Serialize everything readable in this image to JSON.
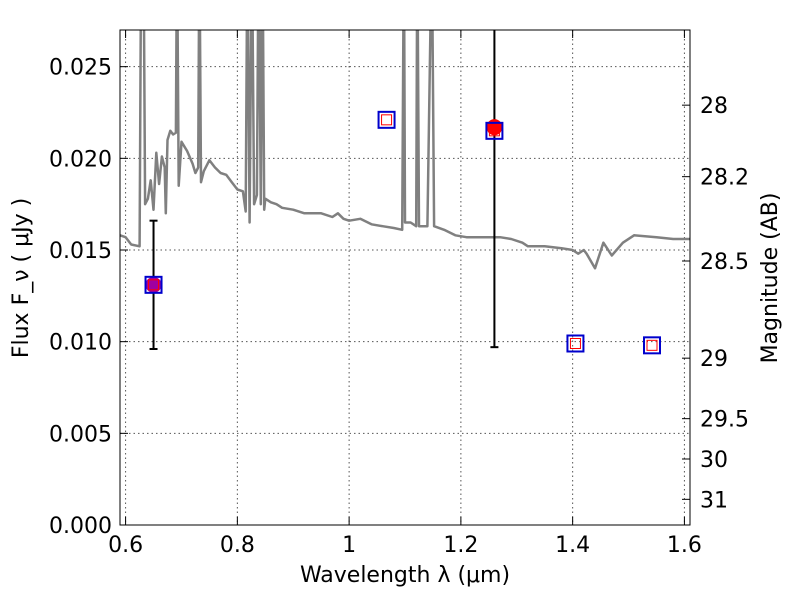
{
  "chart_data": {
    "type": "scatter",
    "title": "",
    "xlabel": "Wavelength  λ (μm)",
    "ylabel": "Flux  F_ν  ( μJy )",
    "ylabel_right": "Magnitude (AB)",
    "xlim": [
      0.59,
      1.61
    ],
    "ylim": [
      0.0,
      0.027
    ],
    "grid": true,
    "x_ticks": [
      0.6,
      0.8,
      1.0,
      1.2,
      1.4,
      1.6
    ],
    "x_tick_labels": [
      "0.6",
      "0.8",
      "1",
      "1.2",
      "1.4",
      "1.6"
    ],
    "y_ticks": [
      0.0,
      0.005,
      0.01,
      0.015,
      0.02,
      0.025
    ],
    "y_tick_labels": [
      "0.000",
      "0.005",
      "0.010",
      "0.015",
      "0.020",
      "0.025"
    ],
    "right_ticks": [
      {
        "label": "28",
        "flux": 0.0229
      },
      {
        "label": "28.2",
        "flux": 0.019
      },
      {
        "label": "28.5",
        "flux": 0.0144
      },
      {
        "label": "29",
        "flux": 0.0091
      },
      {
        "label": "29.5",
        "flux": 0.0058
      },
      {
        "label": "30",
        "flux": 0.0036
      },
      {
        "label": "31",
        "flux": 0.0014
      }
    ],
    "colors": {
      "model": "#808080",
      "box": "#0000cc",
      "inner_square": "#ff0000",
      "observed": "#ff0000",
      "first_point": "#a000a0",
      "errorbar": "#000000",
      "grid": "#555555"
    },
    "series": [
      {
        "style": "line",
        "color": "#808080",
        "points": [
          [
            0.59,
            0.0158
          ],
          [
            0.6,
            0.0157
          ],
          [
            0.61,
            0.0153
          ],
          [
            0.625,
            0.0152
          ],
          [
            0.628,
            0.032
          ],
          [
            0.632,
            0.032
          ],
          [
            0.635,
            0.0175
          ],
          [
            0.64,
            0.0178
          ],
          [
            0.645,
            0.0188
          ],
          [
            0.65,
            0.0172
          ],
          [
            0.655,
            0.0203
          ],
          [
            0.66,
            0.0186
          ],
          [
            0.665,
            0.0201
          ],
          [
            0.67,
            0.0195
          ],
          [
            0.672,
            0.017
          ],
          [
            0.675,
            0.021
          ],
          [
            0.68,
            0.0215
          ],
          [
            0.685,
            0.0213
          ],
          [
            0.69,
            0.0214
          ],
          [
            0.692,
            0.032
          ],
          [
            0.695,
            0.0185
          ],
          [
            0.7,
            0.0209
          ],
          [
            0.71,
            0.0204
          ],
          [
            0.72,
            0.0197
          ],
          [
            0.725,
            0.0192
          ],
          [
            0.73,
            0.0195
          ],
          [
            0.732,
            0.032
          ],
          [
            0.735,
            0.0187
          ],
          [
            0.74,
            0.0193
          ],
          [
            0.75,
            0.0199
          ],
          [
            0.76,
            0.0195
          ],
          [
            0.77,
            0.0192
          ],
          [
            0.78,
            0.0191
          ],
          [
            0.79,
            0.0187
          ],
          [
            0.8,
            0.0183
          ],
          [
            0.81,
            0.0182
          ],
          [
            0.815,
            0.0171
          ],
          [
            0.818,
            0.032
          ],
          [
            0.822,
            0.0165
          ],
          [
            0.826,
            0.032
          ],
          [
            0.83,
            0.0175
          ],
          [
            0.835,
            0.018
          ],
          [
            0.838,
            0.032
          ],
          [
            0.842,
            0.0175
          ],
          [
            0.845,
            0.032
          ],
          [
            0.848,
            0.0172
          ],
          [
            0.85,
            0.0178
          ],
          [
            0.86,
            0.0176
          ],
          [
            0.87,
            0.0175
          ],
          [
            0.88,
            0.0173
          ],
          [
            0.9,
            0.0172
          ],
          [
            0.92,
            0.017
          ],
          [
            0.95,
            0.017
          ],
          [
            0.97,
            0.0168
          ],
          [
            0.98,
            0.017
          ],
          [
            0.99,
            0.0167
          ],
          [
            1.0,
            0.0166
          ],
          [
            1.02,
            0.0167
          ],
          [
            1.04,
            0.0164
          ],
          [
            1.06,
            0.0163
          ],
          [
            1.08,
            0.0162
          ],
          [
            1.095,
            0.0161
          ],
          [
            1.098,
            0.032
          ],
          [
            1.1,
            0.0165
          ],
          [
            1.11,
            0.0165
          ],
          [
            1.12,
            0.0163
          ],
          [
            1.122,
            0.032
          ],
          [
            1.125,
            0.0163
          ],
          [
            1.14,
            0.0163
          ],
          [
            1.148,
            0.032
          ],
          [
            1.152,
            0.0163
          ],
          [
            1.17,
            0.0161
          ],
          [
            1.19,
            0.0158
          ],
          [
            1.21,
            0.0157
          ],
          [
            1.24,
            0.0157
          ],
          [
            1.27,
            0.0157
          ],
          [
            1.29,
            0.0156
          ],
          [
            1.31,
            0.0154
          ],
          [
            1.32,
            0.0152
          ],
          [
            1.35,
            0.0152
          ],
          [
            1.38,
            0.0151
          ],
          [
            1.4,
            0.015
          ],
          [
            1.41,
            0.0148
          ],
          [
            1.42,
            0.015
          ],
          [
            1.425,
            0.0148
          ],
          [
            1.44,
            0.014
          ],
          [
            1.455,
            0.0154
          ],
          [
            1.47,
            0.0147
          ],
          [
            1.49,
            0.0154
          ],
          [
            1.51,
            0.0158
          ],
          [
            1.55,
            0.0157
          ],
          [
            1.58,
            0.0156
          ],
          [
            1.61,
            0.0156
          ]
        ]
      },
      {
        "style": "boxes",
        "color": "#0000cc",
        "points": [
          [
            0.65,
            0.0131
          ],
          [
            1.067,
            0.0221
          ],
          [
            1.26,
            0.0215
          ],
          [
            1.405,
            0.0099
          ],
          [
            1.542,
            0.0098
          ]
        ]
      },
      {
        "style": "observed",
        "color": "#ff0000",
        "points": [
          [
            0.65,
            0.0131,
            0.0035
          ],
          [
            1.26,
            0.0217,
            0.012
          ]
        ]
      }
    ]
  }
}
